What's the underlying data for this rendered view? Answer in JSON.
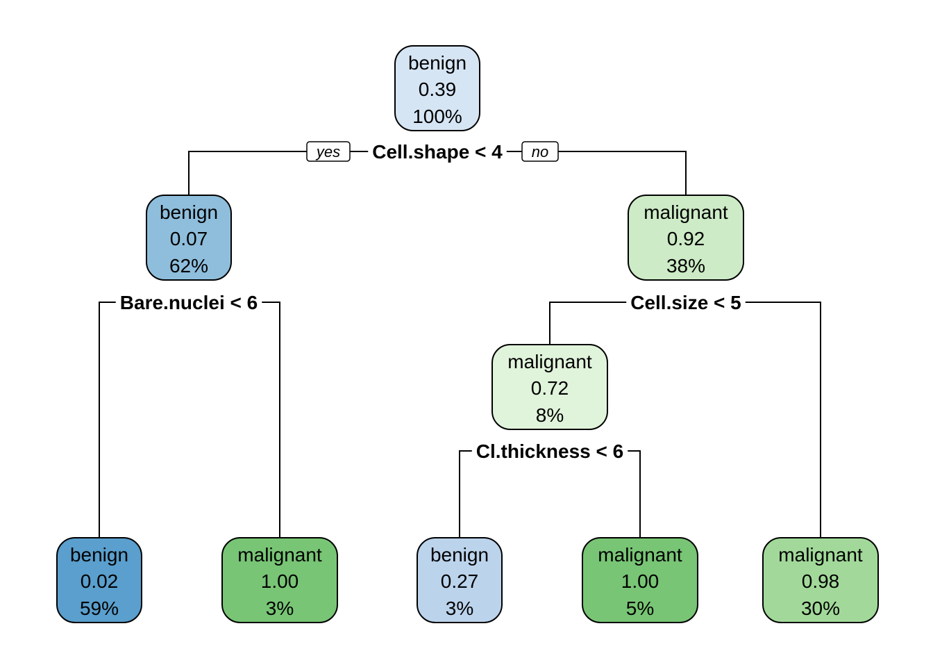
{
  "nodes": [
    {
      "id": "root",
      "class": "benign",
      "prob": "0.39",
      "pct": "100%",
      "fill": "#D6E5F4"
    },
    {
      "id": "n2",
      "class": "benign",
      "prob": "0.07",
      "pct": "62%",
      "fill": "#8FBEDC"
    },
    {
      "id": "n3",
      "class": "malignant",
      "prob": "0.92",
      "pct": "38%",
      "fill": "#CDEBC6"
    },
    {
      "id": "n4",
      "class": "benign",
      "prob": "0.02",
      "pct": "59%",
      "fill": "#5A9FCD"
    },
    {
      "id": "n5",
      "class": "malignant",
      "prob": "1.00",
      "pct": "3%",
      "fill": "#78C575"
    },
    {
      "id": "n6",
      "class": "malignant",
      "prob": "0.72",
      "pct": "8%",
      "fill": "#E0F3DB"
    },
    {
      "id": "n7",
      "class": "malignant",
      "prob": "0.98",
      "pct": "30%",
      "fill": "#A2D99A"
    },
    {
      "id": "n12",
      "class": "benign",
      "prob": "0.27",
      "pct": "3%",
      "fill": "#BCD3EC"
    },
    {
      "id": "n13",
      "class": "malignant",
      "prob": "1.00",
      "pct": "5%",
      "fill": "#78C575"
    }
  ],
  "splits": [
    {
      "id": "s-root",
      "label": "Cell.shape < 4"
    },
    {
      "id": "s-n2",
      "label": "Bare.nuclei < 6"
    },
    {
      "id": "s-n3",
      "label": "Cell.size < 5"
    },
    {
      "id": "s-n6",
      "label": "Cl.thickness < 6"
    }
  ],
  "branch_labels": {
    "yes": "yes",
    "no": "no"
  }
}
